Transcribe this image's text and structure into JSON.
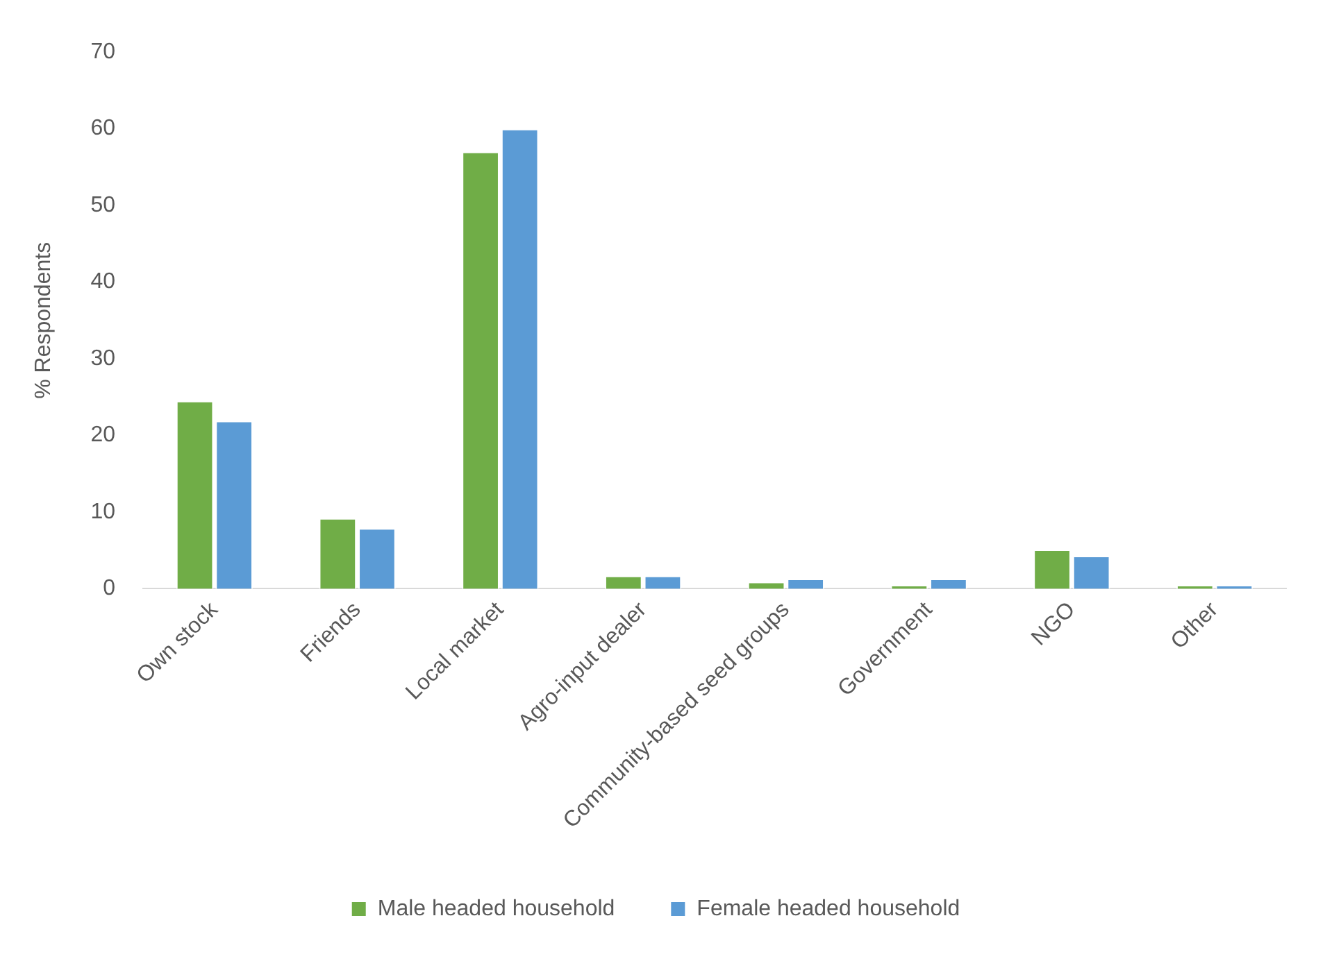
{
  "chart_data": {
    "type": "bar",
    "ylabel": "% Respondents",
    "categories": [
      "Own stock",
      "Friends",
      "Local market",
      "Agro-input dealer",
      "Community-based seed groups",
      "Government",
      "NGO",
      "Other"
    ],
    "series": [
      {
        "name": "Male headed household",
        "color": "#70ad47",
        "values": [
          24.5,
          9.2,
          57,
          1.7,
          0.9,
          0.5,
          5.1,
          0.5
        ]
      },
      {
        "name": "Female headed household",
        "color": "#5b9bd5",
        "values": [
          21.9,
          7.9,
          60,
          1.7,
          1.3,
          1.3,
          4.3,
          0.5
        ]
      }
    ],
    "ylim": [
      0,
      70
    ],
    "yticks": [
      0,
      10,
      20,
      30,
      40,
      50,
      60,
      70
    ],
    "grid": false,
    "legend": "bottom"
  }
}
